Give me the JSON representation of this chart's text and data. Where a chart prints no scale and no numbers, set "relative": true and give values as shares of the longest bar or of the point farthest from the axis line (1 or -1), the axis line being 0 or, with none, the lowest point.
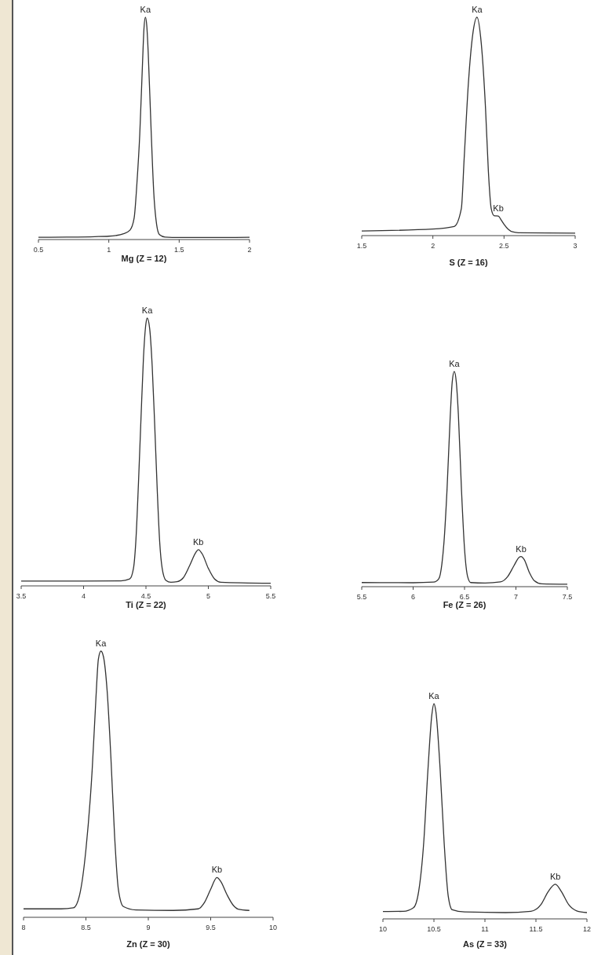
{
  "chart_data": [
    {
      "type": "line",
      "relative": true,
      "xlabel": "Mg (Z = 12)",
      "xlim": [
        0.5,
        2
      ],
      "xticks": [
        0.5,
        1,
        1.5,
        2
      ],
      "annotations": [
        {
          "text": "Ka",
          "x": 1.26,
          "y": 1
        }
      ],
      "series": [
        {
          "color": "#333333",
          "x": [
            0.5,
            0.7,
            0.9,
            1.0,
            1.05,
            1.1,
            1.15,
            1.18,
            1.2,
            1.22,
            1.24,
            1.25,
            1.26,
            1.27,
            1.28,
            1.3,
            1.32,
            1.34,
            1.36,
            1.4,
            1.5,
            1.7,
            2.0
          ],
          "values": [
            0.003,
            0.004,
            0.006,
            0.008,
            0.011,
            0.018,
            0.035,
            0.09,
            0.25,
            0.47,
            0.8,
            0.95,
            1,
            0.96,
            0.84,
            0.5,
            0.2,
            0.06,
            0.015,
            0.004,
            0.002,
            0.002,
            0.003
          ]
        }
      ]
    },
    {
      "type": "line",
      "relative": true,
      "xlabel": "S (Z = 16)",
      "xlim": [
        1.5,
        3
      ],
      "xticks": [
        1.5,
        2,
        2.5,
        3
      ],
      "annotations": [
        {
          "text": "Ka",
          "x": 2.31,
          "y": 1
        },
        {
          "text": "Kb",
          "x": 2.46,
          "y": 0.083
        }
      ],
      "series": [
        {
          "color": "#333333",
          "x": [
            1.5,
            2.0,
            2.15,
            2.2,
            2.22,
            2.25,
            2.28,
            2.31,
            2.34,
            2.37,
            2.39,
            2.41,
            2.43,
            2.46,
            2.48,
            2.5,
            2.53,
            2.56,
            2.6,
            3.0
          ],
          "values": [
            0.014,
            0.023,
            0.035,
            0.117,
            0.35,
            0.7,
            0.92,
            1,
            0.88,
            0.58,
            0.29,
            0.117,
            0.085,
            0.083,
            0.065,
            0.045,
            0.022,
            0.01,
            0.006,
            0.004
          ]
        }
      ]
    },
    {
      "type": "line",
      "relative": true,
      "xlabel": "Ti (Z = 22)",
      "xlim": [
        3.5,
        5.5
      ],
      "xticks": [
        3.5,
        4,
        4.5,
        5,
        5.5
      ],
      "annotations": [
        {
          "text": "Ka",
          "x": 4.51,
          "y": 1
        },
        {
          "text": "Kb",
          "x": 4.92,
          "y": 0.13
        }
      ],
      "series": [
        {
          "color": "#333333",
          "x": [
            3.5,
            4.0,
            4.3,
            4.37,
            4.4,
            4.42,
            4.44,
            4.46,
            4.48,
            4.5,
            4.51,
            4.53,
            4.55,
            4.57,
            4.59,
            4.61,
            4.63,
            4.66,
            4.7,
            4.75,
            4.8,
            4.85,
            4.9,
            4.92,
            4.95,
            5.0,
            5.05,
            5.1,
            5.5
          ],
          "values": [
            0.012,
            0.012,
            0.013,
            0.02,
            0.06,
            0.17,
            0.38,
            0.62,
            0.85,
            0.98,
            1,
            0.96,
            0.82,
            0.6,
            0.36,
            0.16,
            0.06,
            0.015,
            0.008,
            0.01,
            0.025,
            0.07,
            0.12,
            0.13,
            0.115,
            0.06,
            0.02,
            0.008,
            0.004
          ]
        }
      ]
    },
    {
      "type": "line",
      "relative": true,
      "xlabel": "Fe (Z = 26)",
      "xlim": [
        5.5,
        7.5
      ],
      "xticks": [
        5.5,
        6,
        6.5,
        7,
        7.5
      ],
      "annotations": [
        {
          "text": "Ka",
          "x": 6.4,
          "y": 1
        },
        {
          "text": "Kb",
          "x": 7.05,
          "y": 0.134
        }
      ],
      "series": [
        {
          "color": "#333333",
          "x": [
            5.5,
            6.0,
            6.2,
            6.25,
            6.28,
            6.3,
            6.33,
            6.36,
            6.38,
            6.4,
            6.42,
            6.44,
            6.47,
            6.5,
            6.53,
            6.56,
            6.7,
            6.85,
            6.92,
            6.98,
            7.03,
            7.05,
            7.08,
            7.13,
            7.18,
            7.25,
            7.5
          ],
          "values": [
            0.012,
            0.011,
            0.014,
            0.03,
            0.1,
            0.2,
            0.45,
            0.78,
            0.95,
            1,
            0.95,
            0.8,
            0.45,
            0.17,
            0.04,
            0.012,
            0.01,
            0.015,
            0.04,
            0.09,
            0.13,
            0.134,
            0.12,
            0.06,
            0.02,
            0.006,
            0.004
          ]
        }
      ]
    },
    {
      "type": "line",
      "relative": true,
      "xlabel": "Zn (Z = 30)",
      "xlim": [
        8,
        10
      ],
      "xticks": [
        8,
        8.5,
        9,
        9.5,
        10
      ],
      "annotations": [
        {
          "text": "Ka",
          "x": 8.62,
          "y": 1
        },
        {
          "text": "Kb",
          "x": 9.55,
          "y": 0.144
        }
      ],
      "series": [
        {
          "color": "#333333",
          "x": [
            8.0,
            8.3,
            8.4,
            8.45,
            8.5,
            8.55,
            8.58,
            8.6,
            8.62,
            8.64,
            8.67,
            8.7,
            8.73,
            8.76,
            8.8,
            8.9,
            9.2,
            9.4,
            9.45,
            9.5,
            9.55,
            9.58,
            9.63,
            9.68,
            9.72,
            9.81
          ],
          "values": [
            0.026,
            0.026,
            0.03,
            0.08,
            0.25,
            0.55,
            0.82,
            0.97,
            1,
            0.98,
            0.85,
            0.6,
            0.3,
            0.1,
            0.035,
            0.022,
            0.02,
            0.026,
            0.05,
            0.1,
            0.144,
            0.13,
            0.08,
            0.04,
            0.025,
            0.02
          ]
        }
      ]
    },
    {
      "type": "line",
      "relative": true,
      "xlabel": "As (Z = 33)",
      "xlim": [
        10,
        12
      ],
      "xticks": [
        10,
        10.5,
        11,
        11.5,
        12
      ],
      "annotations": [
        {
          "text": "Ka",
          "x": 10.5,
          "y": 1
        },
        {
          "text": "Kb",
          "x": 11.69,
          "y": 0.155
        }
      ],
      "series": [
        {
          "color": "#333333",
          "x": [
            10.0,
            10.2,
            10.3,
            10.35,
            10.4,
            10.44,
            10.48,
            10.5,
            10.52,
            10.56,
            10.6,
            10.64,
            10.68,
            10.8,
            11.2,
            11.45,
            11.55,
            11.62,
            11.69,
            11.75,
            11.82,
            11.9,
            12.0
          ],
          "values": [
            0.027,
            0.028,
            0.045,
            0.12,
            0.35,
            0.68,
            0.95,
            1,
            0.96,
            0.7,
            0.35,
            0.1,
            0.035,
            0.025,
            0.022,
            0.028,
            0.06,
            0.12,
            0.155,
            0.12,
            0.06,
            0.03,
            0.022
          ]
        }
      ]
    }
  ]
}
